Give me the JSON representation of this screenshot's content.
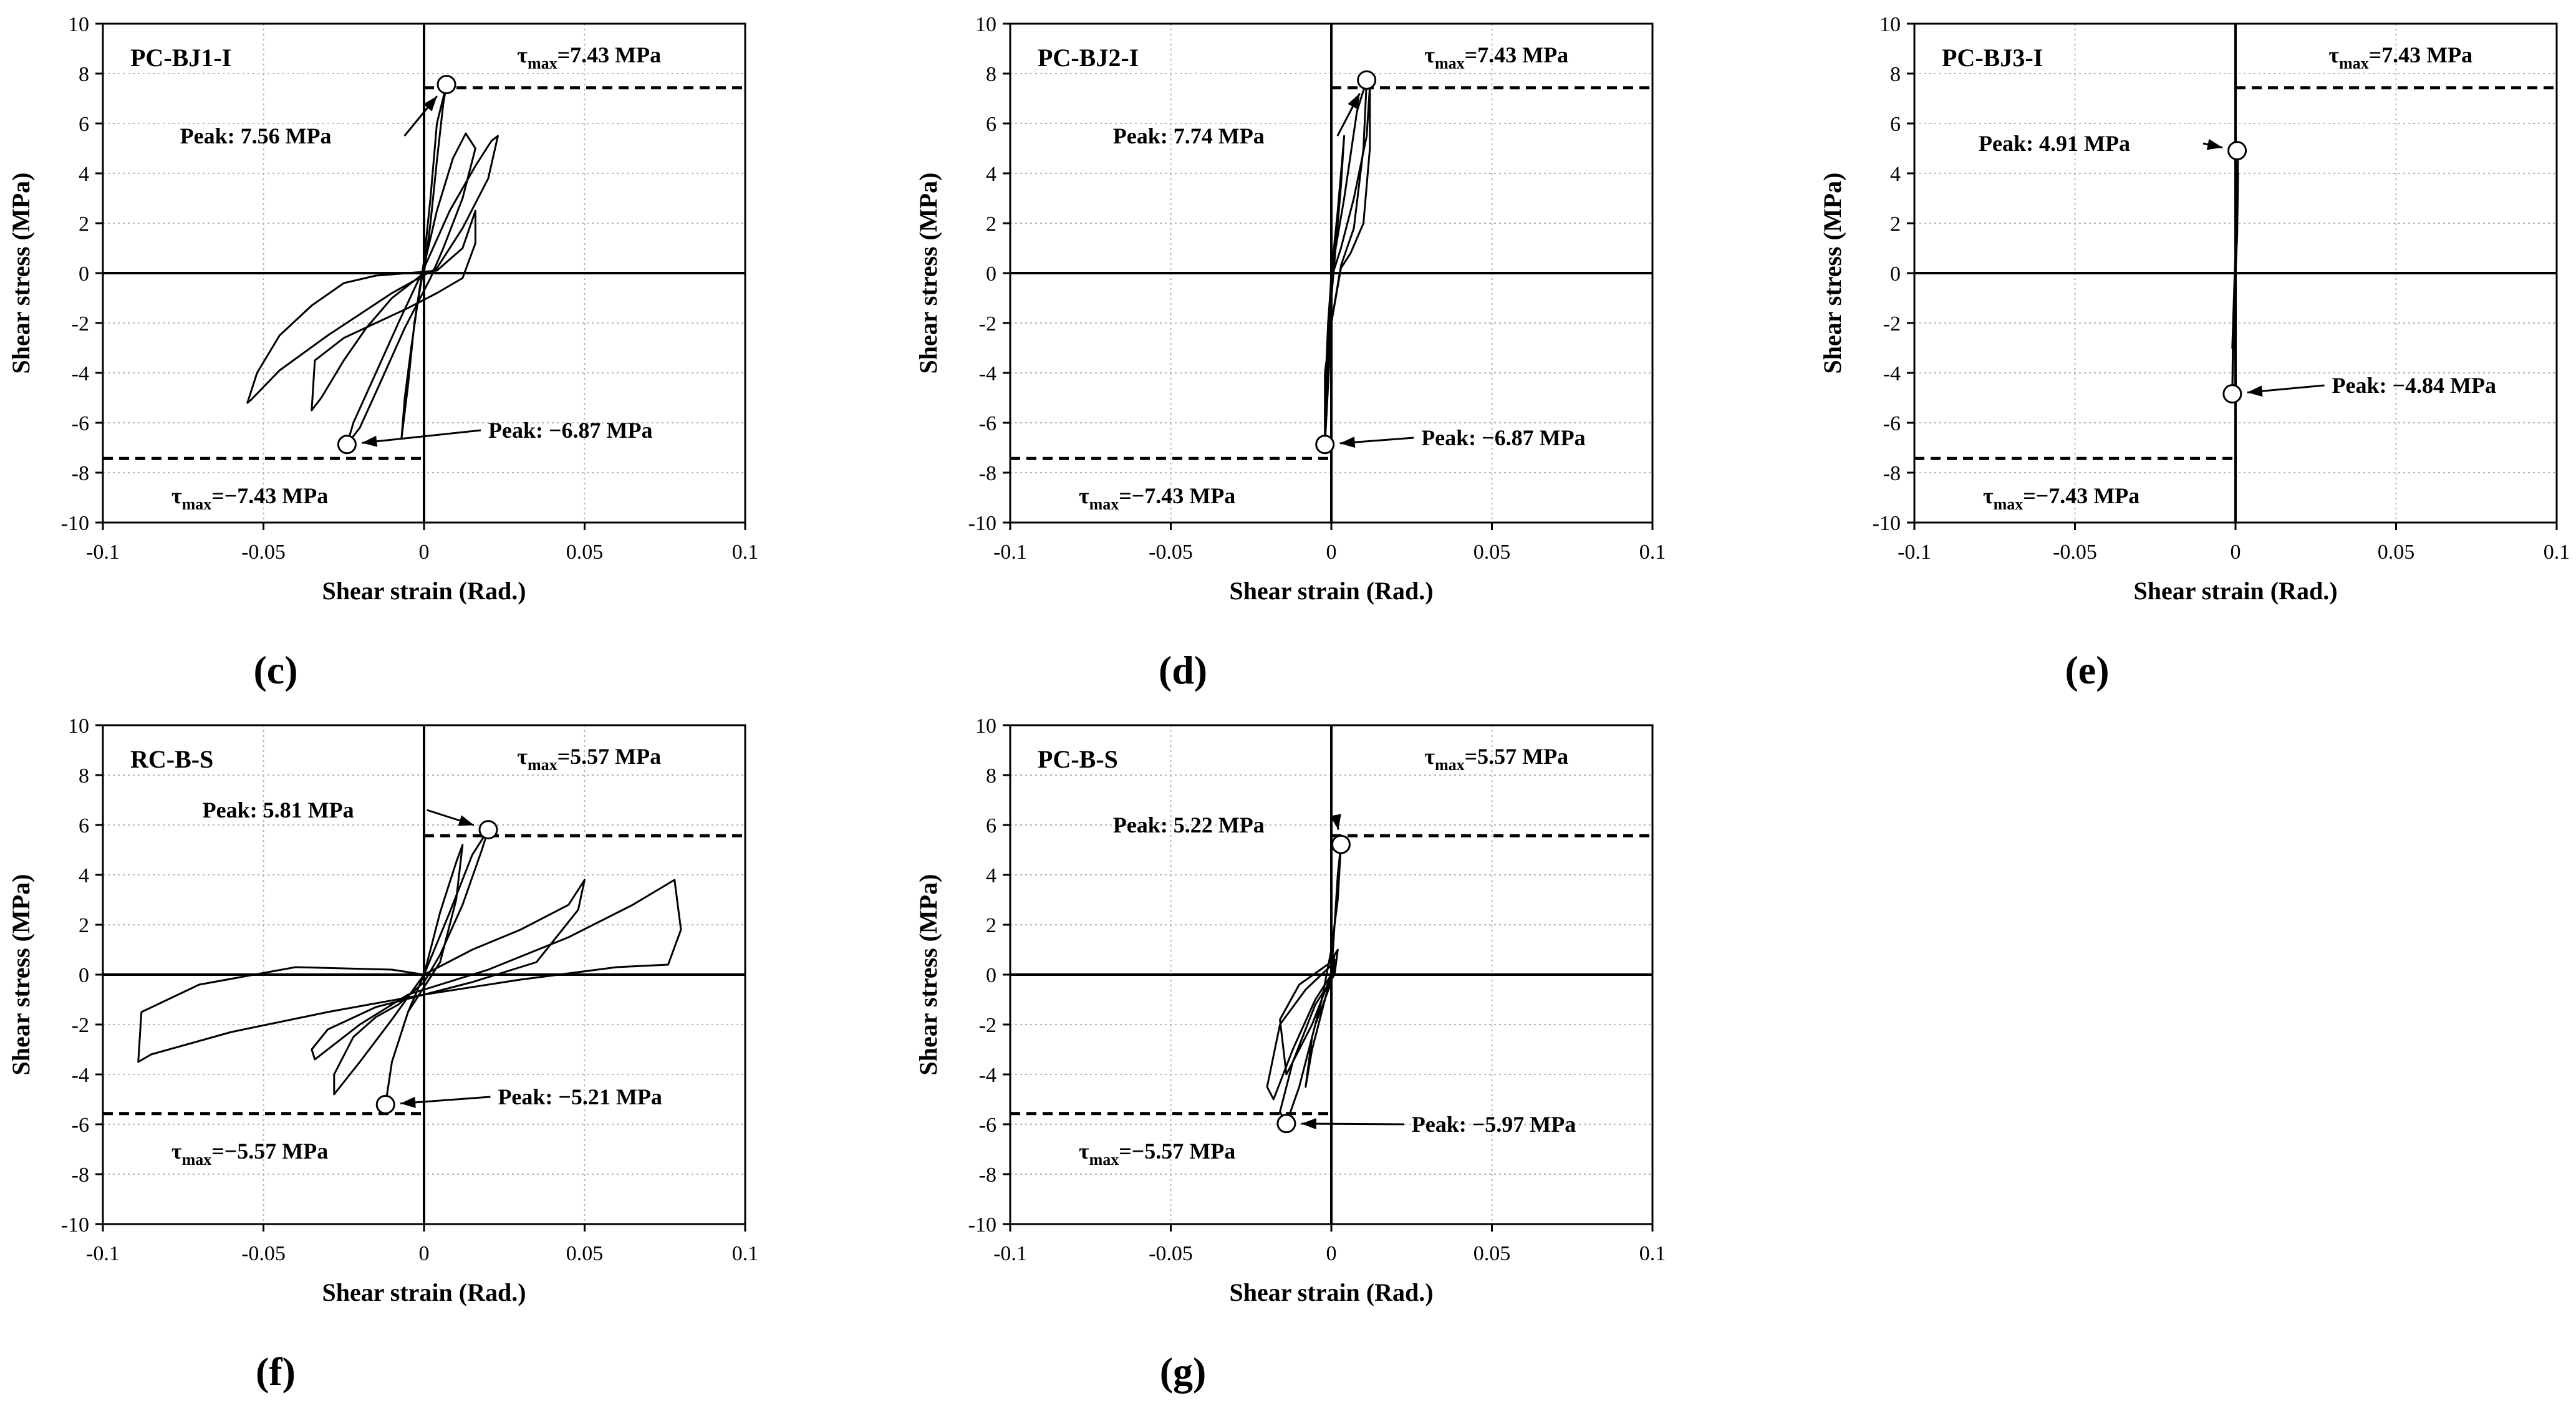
{
  "chart_data": [
    {
      "type": "line",
      "panel_label": "c",
      "title": "PC-BJ1-I",
      "xlabel": "Shear strain (Rad.)",
      "ylabel": "Shear stress (MPa)",
      "xlim": [
        -0.1,
        0.1
      ],
      "ylim": [
        -10,
        10
      ],
      "xticks": [
        -0.1,
        -0.05,
        0,
        0.05,
        0.1
      ],
      "xtick_labels": [
        "-0.1",
        "-0.05",
        "0",
        "0.05",
        "0.1"
      ],
      "yticks": [
        -10,
        -8,
        -6,
        -4,
        -2,
        0,
        2,
        4,
        6,
        8,
        10
      ],
      "ytick_labels": [
        "-10",
        "-8",
        "-6",
        "-4",
        "-2",
        "0",
        "2",
        "4",
        "6",
        "8",
        "10"
      ],
      "grid": true,
      "tau_max": {
        "pos": 7.43,
        "neg": -7.43,
        "pos_label": "=7.43 MPa",
        "neg_label": "=−7.43 MPa"
      },
      "peak_pos": {
        "x": 0.007,
        "y": 7.56,
        "label": "Peak: 7.56 MPa",
        "text_x": -0.076,
        "text_y": 5.5
      },
      "peak_neg": {
        "x": -0.024,
        "y": -6.87,
        "label": "Peak: −6.87 MPa",
        "text_x": 0.02,
        "text_y": -6.3
      },
      "series": [
        {
          "name": "hysteresis",
          "x": [
            0,
            0.002,
            0.004,
            0.006,
            0.007,
            0.004,
            0.002,
            0,
            -0.003,
            -0.005,
            -0.007,
            -0.006,
            -0.004,
            -0.002,
            0,
            0.004,
            0.009,
            0.013,
            0.016,
            0.012,
            0.006,
            0.002,
            -0.006,
            -0.014,
            -0.02,
            -0.024,
            -0.022,
            -0.015,
            -0.008,
            0,
            0.008,
            0.016,
            0.021,
            0.023,
            0.02,
            0.012,
            0.004,
            -0.01,
            -0.03,
            -0.045,
            -0.054,
            -0.055,
            -0.052,
            -0.045,
            -0.035,
            -0.025,
            -0.015,
            -0.005,
            0.004,
            0.012,
            0.016,
            0.016,
            0.012,
            0.004,
            -0.005,
            -0.015,
            -0.025,
            -0.034,
            -0.035,
            -0.032,
            -0.025,
            -0.018,
            -0.01,
            0
          ],
          "y": [
            0,
            2,
            4.5,
            6.8,
            7.56,
            6.0,
            3.0,
            0.5,
            -2.0,
            -4.5,
            -6.6,
            -5.0,
            -3.0,
            -1.2,
            0.3,
            2.5,
            4.6,
            5.6,
            5.0,
            3.0,
            1.0,
            -0.2,
            -2.2,
            -4.5,
            -6.2,
            -6.87,
            -6.0,
            -4.0,
            -2.0,
            0.2,
            2.5,
            4.3,
            5.3,
            5.5,
            3.8,
            1.8,
            0.2,
            -0.8,
            -2.5,
            -3.9,
            -5.1,
            -5.2,
            -4.0,
            -2.5,
            -1.3,
            -0.4,
            -0.1,
            0,
            0.1,
            1.0,
            2.5,
            1.2,
            -0.2,
            -0.8,
            -1.4,
            -2.0,
            -2.6,
            -3.5,
            -5.5,
            -5.0,
            -3.5,
            -2.2,
            -1.0,
            0
          ]
        }
      ]
    },
    {
      "type": "line",
      "panel_label": "d",
      "title": "PC-BJ2-I",
      "xlabel": "Shear strain (Rad.)",
      "ylabel": "Shear stress (MPa)",
      "xlim": [
        -0.1,
        0.1
      ],
      "ylim": [
        -10,
        10
      ],
      "xticks": [
        -0.1,
        -0.05,
        0,
        0.05,
        0.1
      ],
      "xtick_labels": [
        "-0.1",
        "-0.05",
        "0",
        "0.05",
        "0.1"
      ],
      "yticks": [
        -10,
        -8,
        -6,
        -4,
        -2,
        0,
        2,
        4,
        6,
        8,
        10
      ],
      "ytick_labels": [
        "-10",
        "-8",
        "-6",
        "-4",
        "-2",
        "0",
        "2",
        "4",
        "6",
        "8",
        "10"
      ],
      "grid": true,
      "tau_max": {
        "pos": 7.43,
        "neg": -7.43,
        "pos_label": "=7.43 MPa",
        "neg_label": "=−7.43 MPa"
      },
      "peak_pos": {
        "x": 0.011,
        "y": 7.74,
        "label": "Peak: 7.74 MPa",
        "text_x": -0.068,
        "text_y": 5.5
      },
      "peak_neg": {
        "x": -0.002,
        "y": -6.87,
        "label": "Peak: −6.87 MPa",
        "text_x": 0.028,
        "text_y": -6.6
      },
      "series": [
        {
          "name": "hysteresis",
          "x": [
            0,
            0.002,
            0.004,
            0.003,
            0.001,
            -0.001,
            -0.002,
            -0.001,
            0,
            0.004,
            0.008,
            0.011,
            0.01,
            0.007,
            0.003,
            0,
            -0.001,
            -0.002,
            -0.002,
            -0.001,
            0,
            0.003,
            0.007,
            0.011,
            0.012,
            0.012,
            0.01,
            0.006,
            0.003,
            0,
            -0.002,
            -0.002,
            0
          ],
          "y": [
            0,
            2.5,
            5.5,
            3.5,
            0.5,
            -2.5,
            -5.0,
            -2.5,
            0,
            3.0,
            6.5,
            7.74,
            5.0,
            1.8,
            0.3,
            -2.0,
            -4.5,
            -6.87,
            -5.0,
            -2.0,
            -0.2,
            1.0,
            3.0,
            5.5,
            7.5,
            5.0,
            2.0,
            0.8,
            0.2,
            -2.0,
            -4.0,
            -6.2,
            0
          ]
        }
      ]
    },
    {
      "type": "line",
      "panel_label": "e",
      "title": "PC-BJ3-I",
      "xlabel": "Shear strain (Rad.)",
      "ylabel": "Shear stress (MPa)",
      "xlim": [
        -0.1,
        0.1
      ],
      "ylim": [
        -10,
        10
      ],
      "xticks": [
        -0.1,
        -0.05,
        0,
        0.05,
        0.1
      ],
      "xtick_labels": [
        "-0.1",
        "-0.05",
        "0",
        "0.05",
        "0.1"
      ],
      "yticks": [
        -10,
        -8,
        -6,
        -4,
        -2,
        0,
        2,
        4,
        6,
        8,
        10
      ],
      "ytick_labels": [
        "-10",
        "-8",
        "-6",
        "-4",
        "-2",
        "0",
        "2",
        "4",
        "6",
        "8",
        "10"
      ],
      "grid": true,
      "tau_max": {
        "pos": 7.43,
        "neg": -7.43,
        "pos_label": "=7.43 MPa",
        "neg_label": "=−7.43 MPa"
      },
      "peak_pos": {
        "x": 0.0005,
        "y": 4.91,
        "label": "Peak: 4.91 MPa",
        "text_x": -0.08,
        "text_y": 5.2
      },
      "peak_neg": {
        "x": -0.001,
        "y": -4.84,
        "label": "Peak: −4.84 MPa",
        "text_x": 0.03,
        "text_y": -4.5
      },
      "series": [
        {
          "name": "hysteresis",
          "x": [
            0,
            0.0005,
            0.0008,
            0.0005,
            0,
            -0.0005,
            -0.001,
            -0.0005,
            0,
            0.0005,
            0.0008,
            0.0005,
            0,
            -0.0008,
            -0.001,
            -0.0005,
            0
          ],
          "y": [
            0,
            2.0,
            4.91,
            3.0,
            1.0,
            -1.0,
            -3.0,
            -1.5,
            0,
            1.5,
            4.0,
            2.0,
            0,
            -2.5,
            -4.84,
            -2.0,
            0
          ]
        }
      ]
    },
    {
      "type": "line",
      "panel_label": "f",
      "title": "RC-B-S",
      "xlabel": "Shear strain (Rad.)",
      "ylabel": "Shear stress (MPa)",
      "xlim": [
        -0.1,
        0.1
      ],
      "ylim": [
        -10,
        10
      ],
      "xticks": [
        -0.1,
        -0.05,
        0,
        0.05,
        0.1
      ],
      "xtick_labels": [
        "-0.1",
        "-0.05",
        "0",
        "0.05",
        "0.1"
      ],
      "yticks": [
        -10,
        -8,
        -6,
        -4,
        -2,
        0,
        2,
        4,
        6,
        8,
        10
      ],
      "ytick_labels": [
        "-10",
        "-8",
        "-6",
        "-4",
        "-2",
        "0",
        "2",
        "4",
        "6",
        "8",
        "10"
      ],
      "grid": true,
      "tau_max": {
        "pos": 5.57,
        "neg": -5.57,
        "pos_label": "=5.57 MPa",
        "neg_label": "=−5.57 MPa"
      },
      "peak_pos": {
        "x": 0.02,
        "y": 5.81,
        "label": "Peak: 5.81 MPa",
        "text_x": -0.069,
        "text_y": 6.6
      },
      "peak_neg": {
        "x": -0.012,
        "y": -5.21,
        "label": "Peak: −5.21 MPa",
        "text_x": 0.023,
        "text_y": -4.9
      },
      "series": [
        {
          "name": "hysteresis",
          "x": [
            0,
            0.005,
            0.01,
            0.012,
            0.01,
            0.005,
            0,
            -0.005,
            -0.01,
            -0.012,
            -0.01,
            -0.005,
            0,
            0.008,
            0.015,
            0.02,
            0.018,
            0.012,
            0.005,
            0,
            -0.008,
            -0.015,
            -0.022,
            -0.028,
            -0.028,
            -0.02,
            -0.01,
            0,
            0.015,
            0.03,
            0.045,
            0.05,
            0.048,
            0.035,
            0.015,
            0,
            -0.015,
            -0.03,
            -0.035,
            -0.034,
            -0.02,
            -0.005,
            0.02,
            0.045,
            0.065,
            0.078,
            0.08,
            0.076,
            0.06,
            0.03,
            0,
            -0.03,
            -0.06,
            -0.085,
            -0.089,
            -0.088,
            -0.07,
            -0.04,
            -0.01,
            0
          ],
          "y": [
            0,
            2.5,
            4.5,
            5.2,
            3.0,
            0.5,
            -0.5,
            -1.5,
            -3.5,
            -5.21,
            -3.5,
            -1.5,
            0,
            2.5,
            4.8,
            5.81,
            5.0,
            2.8,
            0.8,
            -0.3,
            -1.2,
            -1.7,
            -2.5,
            -4.0,
            -4.8,
            -3.5,
            -1.8,
            0,
            1.0,
            1.8,
            2.8,
            3.8,
            2.6,
            0.5,
            -0.3,
            -0.8,
            -1.3,
            -2.2,
            -3.0,
            -3.4,
            -2.0,
            -0.8,
            0.2,
            1.5,
            2.8,
            3.8,
            1.8,
            0.4,
            0.3,
            -0.2,
            -0.8,
            -1.5,
            -2.3,
            -3.2,
            -3.5,
            -1.5,
            -0.4,
            0.3,
            0.2,
            0
          ]
        }
      ]
    },
    {
      "type": "line",
      "panel_label": "g",
      "title": "PC-B-S",
      "xlabel": "Shear strain (Rad.)",
      "ylabel": "Shear stress (MPa)",
      "xlim": [
        -0.1,
        0.1
      ],
      "ylim": [
        -10,
        10
      ],
      "xticks": [
        -0.1,
        -0.05,
        0,
        0.05,
        0.1
      ],
      "xtick_labels": [
        "-0.1",
        "-0.05",
        "0",
        "0.05",
        "0.1"
      ],
      "yticks": [
        -10,
        -8,
        -6,
        -4,
        -2,
        0,
        2,
        4,
        6,
        8,
        10
      ],
      "ytick_labels": [
        "-10",
        "-8",
        "-6",
        "-4",
        "-2",
        "0",
        "2",
        "4",
        "6",
        "8",
        "10"
      ],
      "grid": true,
      "tau_max": {
        "pos": 5.57,
        "neg": -5.57,
        "pos_label": "=5.57 MPa",
        "neg_label": "=−5.57 MPa"
      },
      "peak_pos": {
        "x": 0.003,
        "y": 5.22,
        "label": "Peak: 5.22 MPa",
        "text_x": -0.068,
        "text_y": 6.0
      },
      "peak_neg": {
        "x": -0.014,
        "y": -5.97,
        "label": "Peak: −5.97 MPa",
        "text_x": 0.025,
        "text_y": -6.0
      },
      "series": [
        {
          "name": "hysteresis",
          "x": [
            0,
            0.001,
            0.002,
            0.003,
            0.002,
            0,
            -0.003,
            -0.006,
            -0.008,
            -0.006,
            -0.003,
            0,
            0.001,
            0.002,
            0.001,
            -0.005,
            -0.012,
            -0.016,
            -0.014,
            -0.01,
            -0.005,
            0,
            0.001,
            -0.008,
            -0.016,
            -0.02,
            -0.018,
            -0.012,
            -0.005,
            0,
            0.001,
            -0.01,
            -0.016,
            -0.014,
            -0.006,
            0
          ],
          "y": [
            0,
            2.0,
            4.0,
            5.22,
            3.0,
            1.0,
            -1.0,
            -2.5,
            -4.5,
            -3.0,
            -1.5,
            0,
            0.8,
            1.0,
            0,
            -1.2,
            -3.5,
            -5.5,
            -5.97,
            -4.5,
            -2.0,
            -0.3,
            0.5,
            -0.6,
            -2.0,
            -4.5,
            -5.0,
            -3.0,
            -1.0,
            0,
            0.6,
            -0.4,
            -1.8,
            -4.0,
            -2.0,
            0
          ]
        }
      ]
    }
  ]
}
